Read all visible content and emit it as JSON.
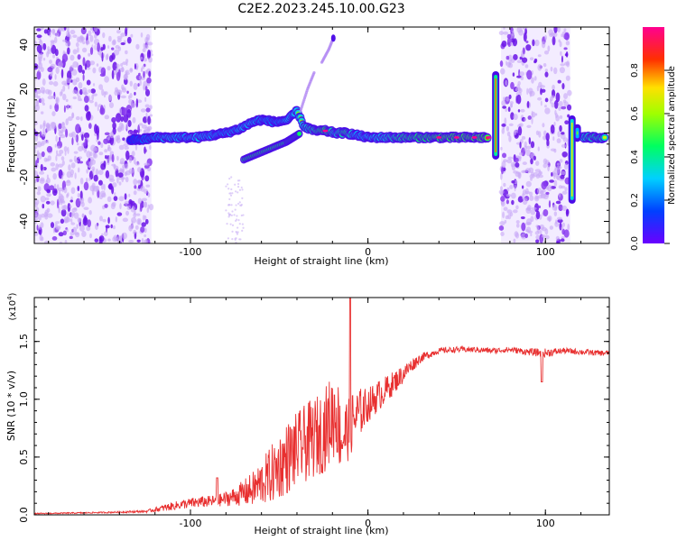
{
  "title": "C2E2.2023.245.10.00.G23",
  "chart_data": [
    {
      "type": "heatmap",
      "xlabel": "Height of straight line (km)",
      "ylabel": "Frequency (Hz)",
      "xlim": [
        -188,
        136
      ],
      "ylim": [
        -50,
        48
      ],
      "xticks": [
        -100,
        0,
        100
      ],
      "yticks": [
        -40,
        -20,
        0,
        20,
        40
      ],
      "colorbar": {
        "label": "Normalized spectral amplitude",
        "range": [
          0,
          1
        ],
        "ticks": [
          "0.0",
          "0.2",
          "0.4",
          "0.6",
          "0.8"
        ]
      },
      "noise_regions": [
        {
          "x": [
            -188,
            -122
          ],
          "density": 900
        },
        {
          "x": [
            75,
            114
          ],
          "density": 450
        }
      ],
      "ridge": [
        {
          "x": -134,
          "y": -3,
          "a": 0.25
        },
        {
          "x": -128,
          "y": -3,
          "a": 0.35
        },
        {
          "x": -120,
          "y": -2,
          "a": 0.45
        },
        {
          "x": -112,
          "y": -2,
          "a": 0.55
        },
        {
          "x": -104,
          "y": -2,
          "a": 0.5
        },
        {
          "x": -96,
          "y": -2,
          "a": 0.55
        },
        {
          "x": -88,
          "y": -1,
          "a": 0.5
        },
        {
          "x": -80,
          "y": 0,
          "a": 0.45
        },
        {
          "x": -72,
          "y": 2,
          "a": 0.5
        },
        {
          "x": -65,
          "y": 5,
          "a": 0.55
        },
        {
          "x": -60,
          "y": 6,
          "a": 0.45
        },
        {
          "x": -52,
          "y": 5,
          "a": 0.4
        },
        {
          "x": -45,
          "y": 6,
          "a": 0.5
        },
        {
          "x": -40,
          "y": 10,
          "a": 0.55
        },
        {
          "x": -36,
          "y": 3,
          "a": 0.6
        },
        {
          "x": -30,
          "y": 1,
          "a": 0.7
        },
        {
          "x": -24,
          "y": 1,
          "a": 0.85
        },
        {
          "x": -18,
          "y": 0,
          "a": 0.6
        },
        {
          "x": -12,
          "y": 0,
          "a": 0.75
        },
        {
          "x": -6,
          "y": -1,
          "a": 0.5
        },
        {
          "x": 0,
          "y": -2,
          "a": 0.55
        },
        {
          "x": 10,
          "y": -2,
          "a": 0.6
        },
        {
          "x": 20,
          "y": -2,
          "a": 0.75
        },
        {
          "x": 30,
          "y": -2,
          "a": 0.8
        },
        {
          "x": 40,
          "y": -2,
          "a": 0.85
        },
        {
          "x": 50,
          "y": -2,
          "a": 0.88
        },
        {
          "x": 60,
          "y": -2,
          "a": 0.9
        },
        {
          "x": 68,
          "y": -2,
          "a": 0.9
        },
        {
          "x": 121,
          "y": -2,
          "a": 0.6
        },
        {
          "x": 128,
          "y": -2,
          "a": 0.7
        },
        {
          "x": 134,
          "y": -2,
          "a": 0.65
        }
      ],
      "branches": [
        {
          "points": [
            [
              -70,
              -12
            ],
            [
              -58,
              -8
            ],
            [
              -46,
              -4
            ],
            [
              -38,
              0
            ]
          ],
          "a": 0.45
        },
        {
          "points": [
            [
              -38,
              10
            ],
            [
              -34,
              20
            ],
            [
              -30,
              28
            ]
          ],
          "a": 0.2
        },
        {
          "points": [
            [
              -26,
              32
            ],
            [
              -22,
              38
            ],
            [
              -19,
              44
            ]
          ],
          "a": 0.22
        }
      ],
      "vertical_streaks": [
        {
          "x": 72,
          "y": [
            -12,
            28
          ],
          "a": 0.8
        },
        {
          "x": 115,
          "y": [
            -32,
            8
          ],
          "a": 0.7
        },
        {
          "x": 118,
          "y": [
            -4,
            4
          ],
          "a": 0.55
        }
      ]
    },
    {
      "type": "line",
      "xlabel": "Height of straight line (km)",
      "ylabel": "SNR (10 * v/v)",
      "exponent_label": "(x10",
      "exponent_power": "4",
      "exponent_close": ")",
      "xlim": [
        -188,
        136
      ],
      "ylim": [
        0,
        1.88
      ],
      "xticks": [
        -100,
        0,
        100
      ],
      "yticks": [
        0.0,
        0.5,
        1.0,
        1.5
      ],
      "ytick_labels": [
        "0.0",
        "0.5",
        "1.0",
        "1.5"
      ],
      "series": [
        {
          "color": "#e83030",
          "x": [
            -188,
            -150,
            -125,
            -115,
            -105,
            -95,
            -85,
            -75,
            -65,
            -55,
            -45,
            -35,
            -25,
            -18,
            -15,
            -10,
            -5,
            0,
            5,
            10,
            15,
            20,
            25,
            30,
            40,
            50,
            60,
            70,
            80,
            90,
            100,
            110,
            120,
            130,
            136
          ],
          "y": [
            0.01,
            0.02,
            0.03,
            0.06,
            0.09,
            0.11,
            0.12,
            0.16,
            0.22,
            0.34,
            0.5,
            0.62,
            0.72,
            0.9,
            0.65,
            0.78,
            0.88,
            0.95,
            1.02,
            1.08,
            1.15,
            1.22,
            1.3,
            1.36,
            1.42,
            1.43,
            1.43,
            1.42,
            1.43,
            1.41,
            1.4,
            1.42,
            1.41,
            1.4,
            1.4
          ],
          "noise": [
            0.005,
            0.006,
            0.01,
            0.03,
            0.04,
            0.05,
            0.05,
            0.08,
            0.15,
            0.25,
            0.32,
            0.34,
            0.36,
            0.4,
            0.3,
            0.28,
            0.22,
            0.15,
            0.14,
            0.12,
            0.1,
            0.08,
            0.06,
            0.04,
            0.025,
            0.025,
            0.025,
            0.025,
            0.025,
            0.03,
            0.04,
            0.025,
            0.025,
            0.025,
            0.025
          ]
        }
      ]
    }
  ]
}
